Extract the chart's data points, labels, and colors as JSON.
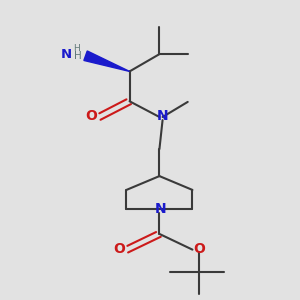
{
  "bg": "#e2e2e2",
  "bond_color": "#3a3a3a",
  "N_color": "#1a1acc",
  "O_color": "#cc1a1a",
  "H_color": "#607878",
  "lw": 1.5,
  "dbo": 0.008,
  "xlim": [
    0.1,
    0.75
  ],
  "ylim": [
    0.02,
    0.97
  ]
}
